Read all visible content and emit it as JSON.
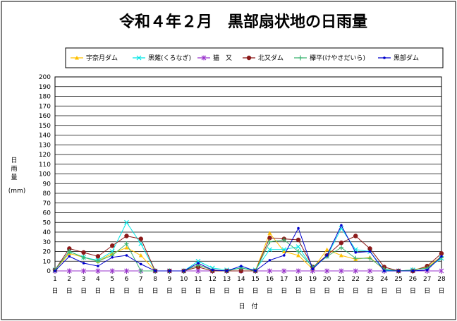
{
  "chart_data": {
    "type": "line",
    "title": "令和４年２月　黒部扇状地の日雨量",
    "xlabel": "日　付",
    "ylabel_chars": [
      "日",
      "雨",
      "量"
    ],
    "ylabel_unit": "(mm)",
    "ylim": [
      0,
      200
    ],
    "ytick_step": 10,
    "grid": true,
    "legend_position": "top",
    "categories": [
      "1",
      "2",
      "3",
      "4",
      "5",
      "6",
      "7",
      "8",
      "9",
      "10",
      "11",
      "12",
      "13",
      "14",
      "15",
      "16",
      "17",
      "18",
      "19",
      "20",
      "21",
      "22",
      "23",
      "24",
      "25",
      "26",
      "27",
      "28"
    ],
    "category_suffix": "日",
    "series": [
      {
        "name": "宇奈月ダム",
        "color": "#FFC000",
        "marker": "triangle",
        "values": [
          1,
          18,
          14,
          10,
          18,
          24,
          16,
          0,
          0,
          0,
          6,
          1,
          0,
          3,
          0,
          39,
          20,
          16,
          2,
          22,
          16,
          12,
          14,
          1,
          0,
          1,
          4,
          15
        ]
      },
      {
        "name": "黒薙(くろなぎ)",
        "color": "#00E5E5",
        "marker": "x",
        "values": [
          1,
          20,
          14,
          11,
          20,
          50,
          28,
          0,
          0,
          0,
          10,
          3,
          1,
          3,
          1,
          22,
          22,
          25,
          3,
          15,
          44,
          22,
          20,
          1,
          0,
          1,
          3,
          13
        ]
      },
      {
        "name": "猫　又",
        "color": "#9933CC",
        "marker": "star",
        "values": [
          0,
          0,
          0,
          0,
          0,
          0,
          0,
          0,
          0,
          0,
          0,
          0,
          0,
          0,
          0,
          0,
          0,
          0,
          0,
          0,
          0,
          0,
          0,
          0,
          0,
          0,
          0,
          0
        ]
      },
      {
        "name": "北又ダム",
        "color": "#8B1A1A",
        "marker": "circle",
        "values": [
          1,
          23,
          19,
          15,
          26,
          36,
          33,
          0,
          0,
          0,
          4,
          0,
          0,
          0,
          0,
          34,
          33,
          32,
          4,
          16,
          29,
          36,
          23,
          4,
          0,
          0,
          5,
          18
        ]
      },
      {
        "name": "欅平(けやきだいら)",
        "color": "#3CB371",
        "marker": "plus",
        "values": [
          1,
          20,
          14,
          10,
          16,
          28,
          0,
          0,
          0,
          0,
          6,
          1,
          0,
          3,
          0,
          30,
          32,
          20,
          4,
          15,
          24,
          13,
          13,
          2,
          0,
          1,
          3,
          14
        ]
      },
      {
        "name": "黒部ダム",
        "color": "#0000CC",
        "marker": "dot",
        "values": [
          0,
          15,
          8,
          5,
          14,
          16,
          7,
          0,
          0,
          0,
          8,
          1,
          0,
          5,
          0,
          11,
          16,
          44,
          2,
          16,
          47,
          19,
          20,
          0,
          0,
          0,
          1,
          15
        ]
      }
    ]
  }
}
